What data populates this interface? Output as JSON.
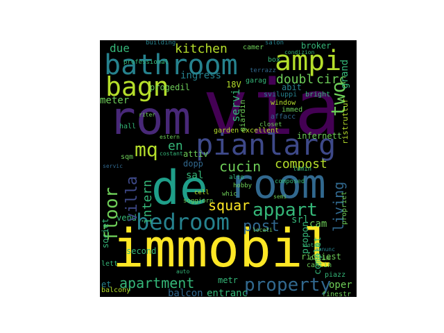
{
  "palette": {
    "yellow": "#fde725",
    "lime": "#b5de2b",
    "green": "#6ece58",
    "teal_green": "#35b779",
    "teal": "#1f9e89",
    "steel": "#26828e",
    "blue": "#31688e",
    "indigo": "#3e4989",
    "purple": "#482878",
    "dark_purple": "#440154"
  },
  "words": {
    "via": "via",
    "rom": "rom",
    "immobil": "immobil",
    "de": "de",
    "room": "room",
    "pianlarg": "pianlarg",
    "bathroom": "bathroom",
    "ampi": "ampi",
    "bagn": "bagn",
    "bedroom": "bedroom",
    "floor": "floor",
    "appart": "appart",
    "property": "property",
    "apartment": "apartment",
    "cucin": "cucin",
    "compost": "compost",
    "kitchen": "kitchen",
    "mq": "mq",
    "villa": "villa",
    "two": "two",
    "living": "living",
    "intern": "intern",
    "squar": "squar",
    "post": "post",
    "doubl": "doubl",
    "circ": "circ",
    "servi": "servi",
    "meter": "meter",
    "due": "due",
    "cam": "cam",
    "ingress": "ingress",
    "infernett": "infernett",
    "srl": "srl",
    "second": "second",
    "societ": "societ",
    "livell": "livell",
    "aut": "aut",
    "entranc": "entranc",
    "balcon": "balcon",
    "metr": "metr",
    "oper": "oper",
    "richiest": "richiest",
    "propon": "propon",
    "complet": "complet",
    "progedil": "progedil",
    "garden": "garden",
    "excellent": "excellent",
    "hall": "hall",
    "sqm": "sqm",
    "attiv": "attiv",
    "dopp": "dopp",
    "sal": "sal",
    "en": "en",
    "abit": "abit",
    "bright": "bright",
    "window": "window",
    "immed": "immed",
    "affacc": "affacc",
    "sviluppi": "sviluppi",
    "giardin": "giardin",
    "broker": "broker",
    "grand": "grand",
    "ristrutturat": "ristruttur",
    "camer": "camer",
    "building": "building",
    "box": "box",
    "garag": "garag",
    "terrazz": "terrazz",
    "soggiorn": "soggiorn",
    "vend": "vend",
    "lett": "lett",
    "balcony": "balcony",
    "piazz": "piazz",
    "finestr": "finestr",
    "cantin": "cantin",
    "composed": "composed",
    "hobby": "hobby",
    "whic": "whic",
    "cell": "cell",
    "alto": "alto",
    "lumin": "lumin",
    "propriet": "propriet",
    "closet": "closet",
    "professional": "professional",
    "rtv": "18V",
    "et": "et",
    "auto": "auto",
    "servic": "servic",
    "ottim": "ottim",
    "dotat": "dotat",
    "locati": "locati",
    "semi": "semi",
    "annunc": "annunc",
    "condizion": "condizion",
    "salon": "salon",
    "estern": "estern",
    "costant": "costant",
    "riter": "riter"
  }
}
